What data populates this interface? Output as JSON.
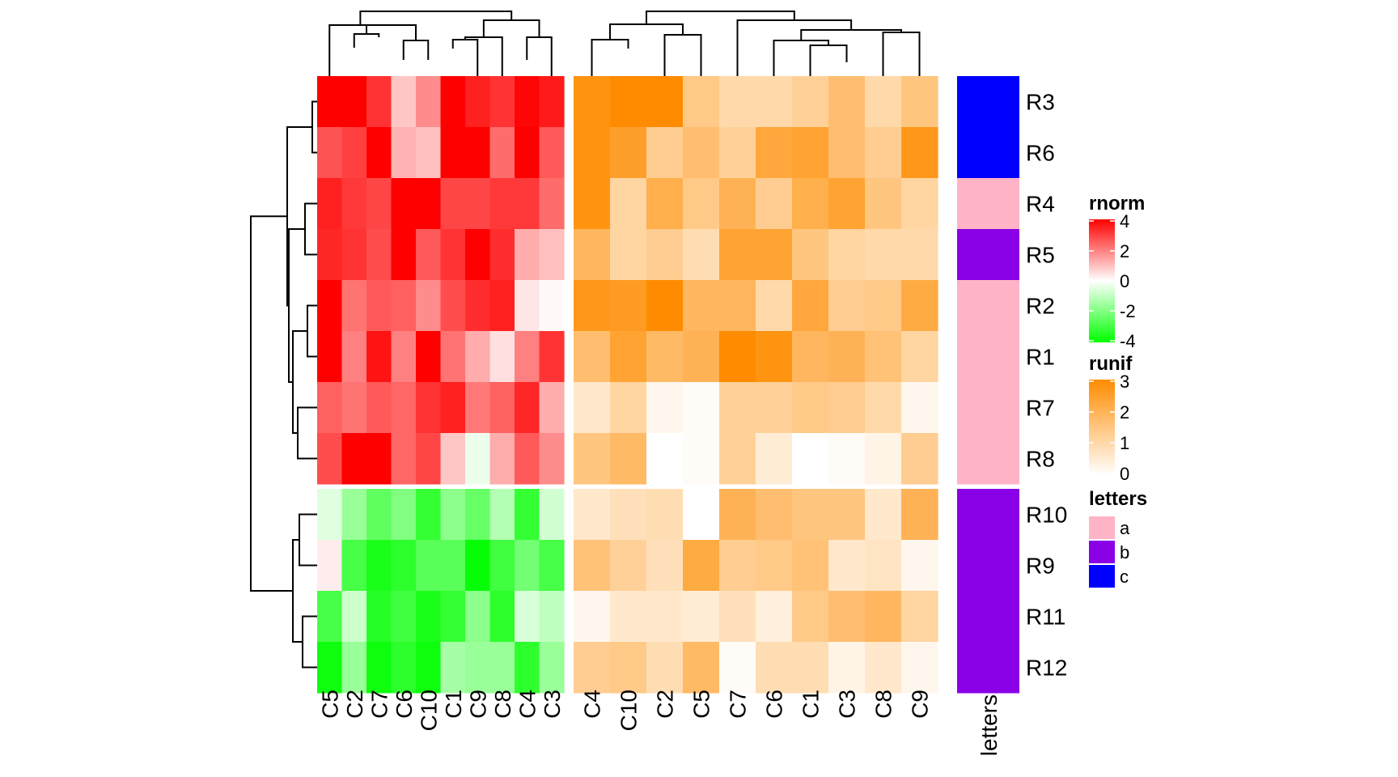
{
  "chart_data": {
    "type": "heatmap",
    "rows": [
      "R3",
      "R6",
      "R4",
      "R5",
      "R2",
      "R1",
      "R7",
      "R8",
      "R10",
      "R9",
      "R11",
      "R12"
    ],
    "row_split": [
      8,
      4
    ],
    "heatmaps": [
      {
        "name": "rnorm",
        "columns": [
          "C5",
          "C2",
          "C7",
          "C6",
          "C10",
          "C1",
          "C9",
          "C8",
          "C4",
          "C3"
        ],
        "values": [
          [
            4.0,
            4.2,
            3.2,
            0.9,
            1.8,
            4.0,
            3.5,
            3.2,
            3.9,
            3.6
          ],
          [
            2.7,
            3.0,
            4.0,
            1.2,
            1.0,
            4.1,
            4.1,
            2.3,
            4.1,
            2.6
          ],
          [
            3.5,
            3.1,
            2.9,
            4.5,
            4.5,
            2.9,
            2.9,
            3.1,
            3.1,
            2.3
          ],
          [
            3.4,
            3.2,
            2.8,
            4.4,
            2.6,
            3.2,
            4.3,
            3.3,
            1.3,
            1.0
          ],
          [
            4.1,
            2.2,
            2.6,
            2.5,
            1.8,
            2.8,
            3.3,
            3.5,
            0.4,
            0.1
          ],
          [
            4.2,
            2.0,
            3.7,
            2.0,
            4.2,
            2.2,
            1.3,
            0.5,
            2.0,
            3.2
          ],
          [
            2.5,
            2.2,
            2.6,
            2.4,
            3.2,
            3.5,
            2.1,
            2.5,
            3.4,
            1.3
          ],
          [
            2.8,
            4.5,
            4.5,
            2.4,
            2.9,
            0.9,
            -0.3,
            1.3,
            2.6,
            1.8
          ],
          [
            -0.5,
            -1.6,
            -2.5,
            -2.0,
            -3.2,
            -1.8,
            -2.4,
            -1.2,
            -3.2,
            -0.7
          ],
          [
            0.3,
            -2.9,
            -3.6,
            -3.3,
            -2.6,
            -2.6,
            -3.9,
            -3.0,
            -2.2,
            -2.9
          ],
          [
            -2.9,
            -0.8,
            -3.4,
            -3.0,
            -3.6,
            -3.2,
            -1.8,
            -3.3,
            -0.6,
            -1.0
          ],
          [
            -3.8,
            -1.6,
            -3.8,
            -3.3,
            -3.8,
            -1.4,
            -1.6,
            -1.6,
            -3.3,
            -1.6
          ]
        ],
        "legend": {
          "title": "rnorm",
          "ticks": [
            4,
            2,
            0,
            -2,
            -4
          ]
        }
      },
      {
        "name": "runif",
        "columns": [
          "C4",
          "C10",
          "C2",
          "C5",
          "C7",
          "C6",
          "C1",
          "C3",
          "C8",
          "C9"
        ],
        "values": [
          [
            2.8,
            3.0,
            3.0,
            1.4,
            1.0,
            1.0,
            1.2,
            1.7,
            1.0,
            1.5
          ],
          [
            2.8,
            2.5,
            1.3,
            1.7,
            1.2,
            2.3,
            2.4,
            1.7,
            1.3,
            2.7
          ],
          [
            2.8,
            1.1,
            2.1,
            1.4,
            2.0,
            1.3,
            2.1,
            2.4,
            1.5,
            1.1
          ],
          [
            1.9,
            1.1,
            1.3,
            0.9,
            2.4,
            2.4,
            1.5,
            1.1,
            1.0,
            1.0
          ],
          [
            2.7,
            2.6,
            3.0,
            1.9,
            1.9,
            1.0,
            2.3,
            1.3,
            1.4,
            2.2
          ],
          [
            1.7,
            2.4,
            1.8,
            2.0,
            3.0,
            2.8,
            1.9,
            2.0,
            1.6,
            1.1
          ],
          [
            0.6,
            1.1,
            0.2,
            0.1,
            1.2,
            1.2,
            1.4,
            1.3,
            1.0,
            0.2
          ],
          [
            1.5,
            1.8,
            0.0,
            0.1,
            1.2,
            0.5,
            0.0,
            0.1,
            0.3,
            1.3
          ],
          [
            0.6,
            0.8,
            0.9,
            0.0,
            2.0,
            1.7,
            1.5,
            1.5,
            0.6,
            2.0
          ],
          [
            1.6,
            1.2,
            0.8,
            2.2,
            1.3,
            1.4,
            1.6,
            0.6,
            0.7,
            0.2
          ],
          [
            0.2,
            0.6,
            0.6,
            0.5,
            0.8,
            0.4,
            1.4,
            1.7,
            1.9,
            1.1
          ],
          [
            1.3,
            1.4,
            0.9,
            1.8,
            0.1,
            0.9,
            0.9,
            0.3,
            0.6,
            0.2
          ]
        ],
        "legend": {
          "title": "runif",
          "ticks": [
            3,
            2,
            1,
            0
          ]
        }
      }
    ],
    "row_annotation": {
      "name": "letters",
      "values": [
        "c",
        "c",
        "a",
        "b",
        "a",
        "a",
        "a",
        "a",
        "b",
        "b",
        "b",
        "b"
      ],
      "legend": {
        "title": "letters",
        "levels": [
          {
            "label": "a",
            "color": "#FFB3C6"
          },
          {
            "label": "b",
            "color": "#8A00E6"
          },
          {
            "label": "c",
            "color": "#0000FF"
          }
        ]
      }
    },
    "colors": {
      "rnorm": {
        "high": "#FF0000",
        "mid": "#FFFFFF",
        "low": "#00FF00"
      },
      "runif": {
        "high": "#FF8C00",
        "low": "#FFFFFF"
      }
    }
  }
}
